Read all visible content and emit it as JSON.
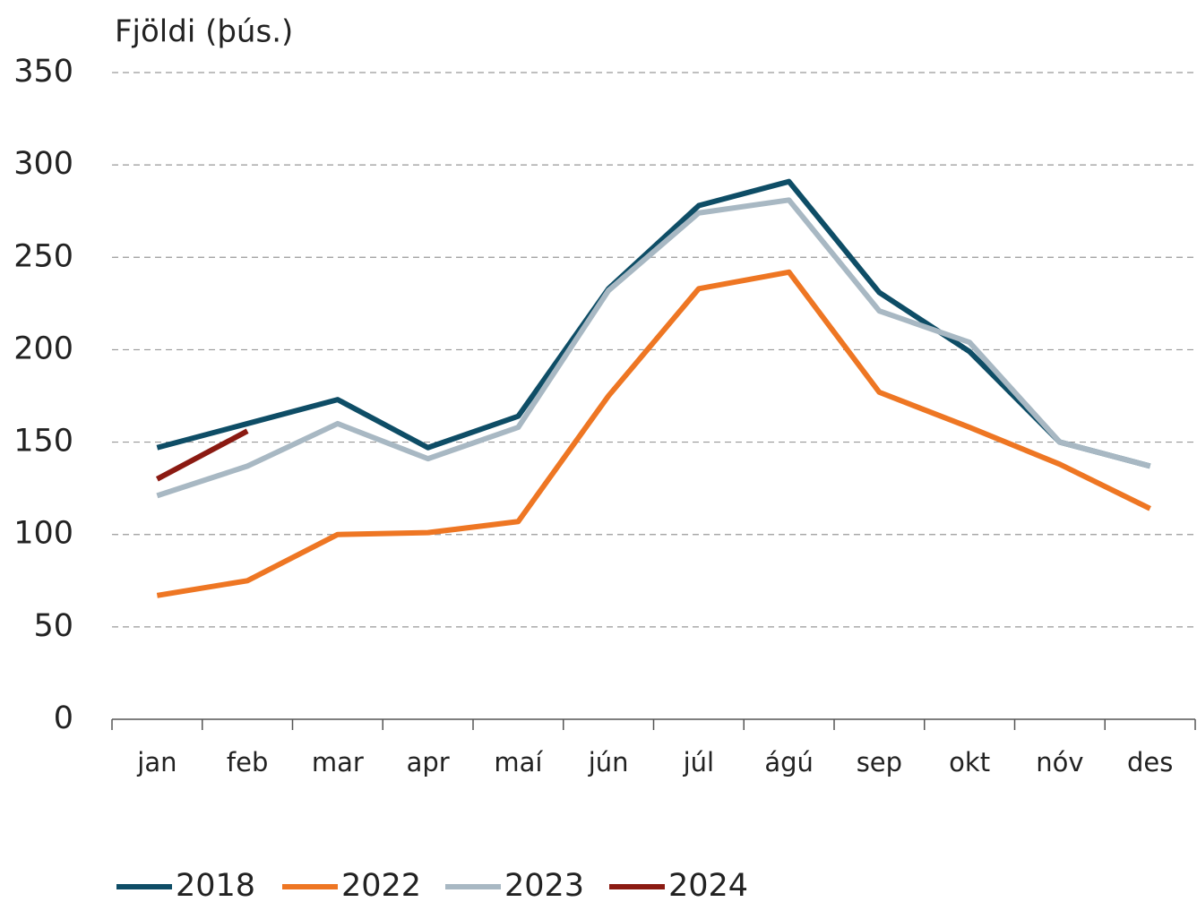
{
  "chart_data": {
    "type": "line",
    "ylabel": "Fjöldi (þús.)",
    "categories": [
      "jan",
      "feb",
      "mar",
      "apr",
      "maí",
      "jún",
      "júl",
      "ágú",
      "sep",
      "okt",
      "nóv",
      "des"
    ],
    "series": [
      {
        "name": "2018",
        "color": "#0e4d66",
        "values": [
          147,
          160,
          173,
          147,
          164,
          233,
          278,
          291,
          231,
          199,
          150,
          137
        ]
      },
      {
        "name": "2022",
        "color": "#ee7623",
        "values": [
          67,
          75,
          100,
          101,
          107,
          175,
          233,
          242,
          177,
          158,
          138,
          114
        ]
      },
      {
        "name": "2023",
        "color": "#a8b8c3",
        "values": [
          121,
          137,
          160,
          141,
          158,
          232,
          274,
          281,
          221,
          204,
          150,
          137
        ]
      },
      {
        "name": "2024",
        "color": "#8b1a12",
        "values": [
          130,
          156,
          null,
          null,
          null,
          null,
          null,
          null,
          null,
          null,
          null,
          null
        ]
      }
    ],
    "ylim": [
      0,
      350
    ],
    "yticks": [
      0,
      50,
      100,
      150,
      200,
      250,
      300,
      350
    ],
    "grid": true,
    "legend": "bottom"
  }
}
